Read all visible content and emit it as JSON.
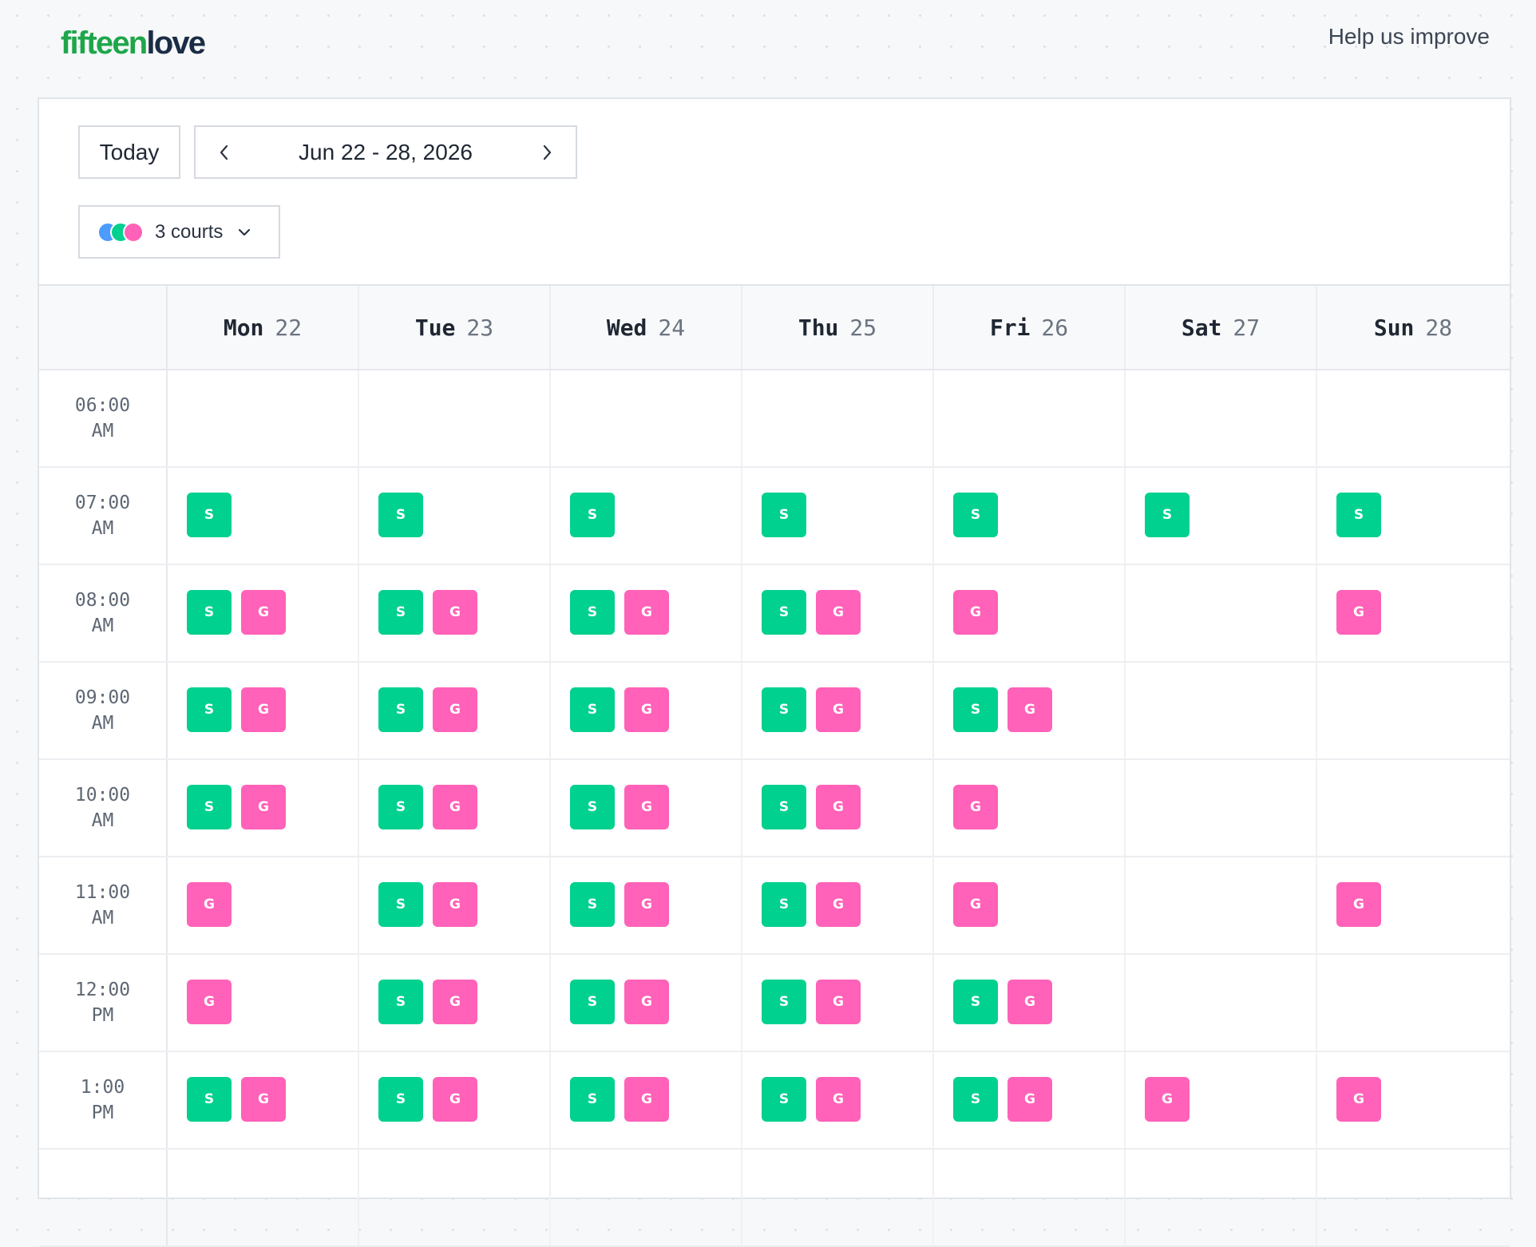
{
  "header": {
    "logo_part1": "fifteen",
    "logo_part2": "love",
    "help_link": "Help us improve"
  },
  "colors": {
    "brand_green": "#1ea64a",
    "slot_s": "#00d18e",
    "slot_g": "#ff62b8",
    "court_blue": "#4c9bff"
  },
  "toolbar": {
    "today_label": "Today",
    "date_range": "Jun 22 - 28, 2026",
    "prev_icon": "chevron-left-icon",
    "next_icon": "chevron-right-icon",
    "courts_label": "3 courts",
    "courts_dropdown_icon": "chevron-down-icon",
    "court_dot_colors": [
      "#4c9bff",
      "#00d18e",
      "#ff62b8"
    ]
  },
  "calendar": {
    "days": [
      {
        "name": "Mon",
        "date": "22"
      },
      {
        "name": "Tue",
        "date": "23"
      },
      {
        "name": "Wed",
        "date": "24"
      },
      {
        "name": "Thu",
        "date": "25"
      },
      {
        "name": "Fri",
        "date": "26"
      },
      {
        "name": "Sat",
        "date": "27"
      },
      {
        "name": "Sun",
        "date": "28"
      }
    ],
    "rows": [
      {
        "time": "06:00",
        "period": "AM",
        "slots": [
          [],
          [],
          [],
          [],
          [],
          [],
          []
        ]
      },
      {
        "time": "07:00",
        "period": "AM",
        "slots": [
          [
            "S"
          ],
          [
            "S"
          ],
          [
            "S"
          ],
          [
            "S"
          ],
          [
            "S"
          ],
          [
            "S"
          ],
          [
            "S"
          ]
        ]
      },
      {
        "time": "08:00",
        "period": "AM",
        "slots": [
          [
            "S",
            "G"
          ],
          [
            "S",
            "G"
          ],
          [
            "S",
            "G"
          ],
          [
            "S",
            "G"
          ],
          [
            "G"
          ],
          [],
          [
            "G"
          ]
        ]
      },
      {
        "time": "09:00",
        "period": "AM",
        "slots": [
          [
            "S",
            "G"
          ],
          [
            "S",
            "G"
          ],
          [
            "S",
            "G"
          ],
          [
            "S",
            "G"
          ],
          [
            "S",
            "G"
          ],
          [],
          []
        ]
      },
      {
        "time": "10:00",
        "period": "AM",
        "slots": [
          [
            "S",
            "G"
          ],
          [
            "S",
            "G"
          ],
          [
            "S",
            "G"
          ],
          [
            "S",
            "G"
          ],
          [
            "G"
          ],
          [],
          []
        ]
      },
      {
        "time": "11:00",
        "period": "AM",
        "slots": [
          [
            "G"
          ],
          [
            "S",
            "G"
          ],
          [
            "S",
            "G"
          ],
          [
            "S",
            "G"
          ],
          [
            "G"
          ],
          [],
          [
            "G"
          ]
        ]
      },
      {
        "time": "12:00",
        "period": "PM",
        "slots": [
          [
            "G"
          ],
          [
            "S",
            "G"
          ],
          [
            "S",
            "G"
          ],
          [
            "S",
            "G"
          ],
          [
            "S",
            "G"
          ],
          [],
          []
        ]
      },
      {
        "time": "1:00",
        "period": "PM",
        "slots": [
          [
            "S",
            "G"
          ],
          [
            "S",
            "G"
          ],
          [
            "S",
            "G"
          ],
          [
            "S",
            "G"
          ],
          [
            "S",
            "G"
          ],
          [
            "G"
          ],
          [
            "G"
          ]
        ]
      },
      {
        "time": "",
        "period": "",
        "slots": [
          [],
          [],
          [],
          [],
          [],
          [],
          []
        ]
      }
    ]
  }
}
